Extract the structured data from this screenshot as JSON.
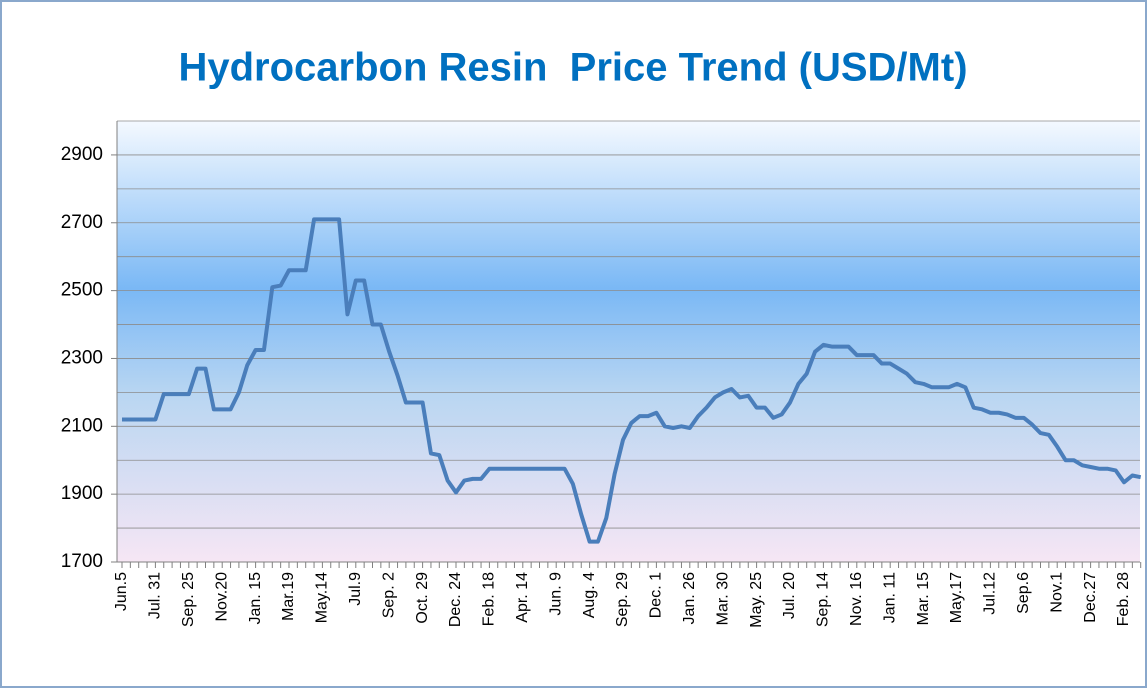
{
  "chart_data": {
    "type": "line",
    "title": "Hydrocarbon Resin  Price Trend (USD/Mt)",
    "categories": [
      "Jun.5",
      null,
      null,
      null,
      "Jul. 31",
      null,
      null,
      null,
      "Sep. 25",
      null,
      null,
      null,
      "Nov.20",
      null,
      null,
      null,
      "Jan. 15",
      null,
      null,
      null,
      "Mar.19",
      null,
      null,
      null,
      "May.14",
      null,
      null,
      null,
      "Jul.9",
      null,
      null,
      null,
      "Sep. 2",
      null,
      null,
      null,
      "Oct. 29",
      null,
      null,
      null,
      "Dec. 24",
      null,
      null,
      null,
      "Feb. 18",
      null,
      null,
      null,
      "Apr. 14",
      null,
      null,
      null,
      "Jun. 9",
      null,
      null,
      null,
      "Aug. 4",
      null,
      null,
      null,
      "Sep. 29",
      null,
      null,
      null,
      "Dec. 1",
      null,
      null,
      null,
      "Jan. 26",
      null,
      null,
      null,
      "Mar. 30",
      null,
      null,
      null,
      "May. 25",
      null,
      null,
      null,
      "Jul. 20",
      null,
      null,
      null,
      "Sep. 14",
      null,
      null,
      null,
      "Nov. 16",
      null,
      null,
      null,
      "Jan. 11",
      null,
      null,
      null,
      "Mar. 15",
      null,
      null,
      null,
      "May.17",
      null,
      null,
      null,
      "Jul.12",
      null,
      null,
      null,
      "Sep.6",
      null,
      null,
      null,
      "Nov.1",
      null,
      null,
      null,
      "Dec.27",
      null,
      null,
      null,
      "Feb. 28",
      null,
      null
    ],
    "series": [
      {
        "color": "#4a7ebb",
        "values": [
          2120,
          2120,
          2120,
          2120,
          2120,
          2195,
          2195,
          2195,
          2195,
          2270,
          2270,
          2150,
          2150,
          2150,
          2200,
          2280,
          2325,
          2325,
          2510,
          2515,
          2560,
          2560,
          2560,
          2710,
          2710,
          2710,
          2710,
          2430,
          2530,
          2530,
          2400,
          2400,
          2320,
          2250,
          2170,
          2170,
          2170,
          2020,
          2015,
          1940,
          1905,
          1940,
          1945,
          1945,
          1975,
          1975,
          1975,
          1975,
          1975,
          1975,
          1975,
          1975,
          1975,
          1975,
          1930,
          1840,
          1760,
          1760,
          1830,
          1960,
          2060,
          2110,
          2130,
          2130,
          2140,
          2100,
          2095,
          2100,
          2095,
          2130,
          2155,
          2185,
          2200,
          2210,
          2185,
          2190,
          2155,
          2155,
          2125,
          2135,
          2170,
          2225,
          2255,
          2320,
          2340,
          2335,
          2335,
          2335,
          2310,
          2310,
          2310,
          2285,
          2285,
          2270,
          2255,
          2230,
          2225,
          2215,
          2215,
          2215,
          2225,
          2215,
          2155,
          2150,
          2140,
          2140,
          2135,
          2125,
          2125,
          2105,
          2080,
          2075,
          2040,
          2000,
          2000,
          1985,
          1980,
          1975,
          1975,
          1970,
          1935,
          1955,
          1950
        ]
      }
    ],
    "ylim": [
      1700,
      3000
    ],
    "yticks": [
      1700,
      1900,
      2100,
      2300,
      2500,
      2700,
      2900
    ],
    "minor_yticks": [
      1800,
      2000,
      2200,
      2400,
      2600,
      2800,
      3000
    ],
    "grid": true
  }
}
